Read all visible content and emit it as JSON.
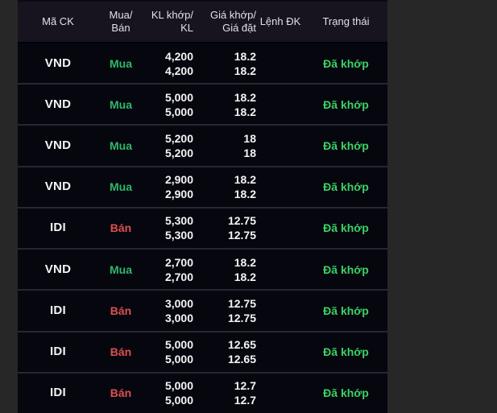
{
  "colors": {
    "buy_green": "#2eb869",
    "sell_red": "#dd5050",
    "status_green": "#3dd065",
    "row_background": "#06060e",
    "header_background": "#17131f",
    "outer_background": "#272727",
    "text_white": "#f4f4f6"
  },
  "table": {
    "headers": [
      {
        "line1": "Mã CK"
      },
      {
        "line1": "Mua/",
        "line2": "Bán"
      },
      {
        "line1": "KL khớp/",
        "line2": "KL"
      },
      {
        "line1": "Giá khớp/",
        "line2": "Giá đặt"
      },
      {
        "line1": "Lệnh ĐK"
      },
      {
        "line1": "Trạng thái"
      }
    ],
    "rows": [
      {
        "code": "VND",
        "side": "Mua",
        "side_type": "buy",
        "matched_volume": "4,200",
        "order_volume": "4,200",
        "matched_price": "18.2",
        "order_price": "18.2",
        "condition": "",
        "status": "Đã khớp"
      },
      {
        "code": "VND",
        "side": "Mua",
        "side_type": "buy",
        "matched_volume": "5,000",
        "order_volume": "5,000",
        "matched_price": "18.2",
        "order_price": "18.2",
        "condition": "",
        "status": "Đã khớp"
      },
      {
        "code": "VND",
        "side": "Mua",
        "side_type": "buy",
        "matched_volume": "5,200",
        "order_volume": "5,200",
        "matched_price": "18",
        "order_price": "18",
        "condition": "",
        "status": "Đã khớp"
      },
      {
        "code": "VND",
        "side": "Mua",
        "side_type": "buy",
        "matched_volume": "2,900",
        "order_volume": "2,900",
        "matched_price": "18.2",
        "order_price": "18.2",
        "condition": "",
        "status": "Đã khớp"
      },
      {
        "code": "IDI",
        "side": "Bán",
        "side_type": "sell",
        "matched_volume": "5,300",
        "order_volume": "5,300",
        "matched_price": "12.75",
        "order_price": "12.75",
        "condition": "",
        "status": "Đã khớp"
      },
      {
        "code": "VND",
        "side": "Mua",
        "side_type": "buy",
        "matched_volume": "2,700",
        "order_volume": "2,700",
        "matched_price": "18.2",
        "order_price": "18.2",
        "condition": "",
        "status": "Đã khớp"
      },
      {
        "code": "IDI",
        "side": "Bán",
        "side_type": "sell",
        "matched_volume": "3,000",
        "order_volume": "3,000",
        "matched_price": "12.75",
        "order_price": "12.75",
        "condition": "",
        "status": "Đã khớp"
      },
      {
        "code": "IDI",
        "side": "Bán",
        "side_type": "sell",
        "matched_volume": "5,000",
        "order_volume": "5,000",
        "matched_price": "12.65",
        "order_price": "12.65",
        "condition": "",
        "status": "Đã khớp"
      },
      {
        "code": "IDI",
        "side": "Bán",
        "side_type": "sell",
        "matched_volume": "5,000",
        "order_volume": "5,000",
        "matched_price": "12.7",
        "order_price": "12.7",
        "condition": "",
        "status": "Đã khớp"
      }
    ]
  }
}
